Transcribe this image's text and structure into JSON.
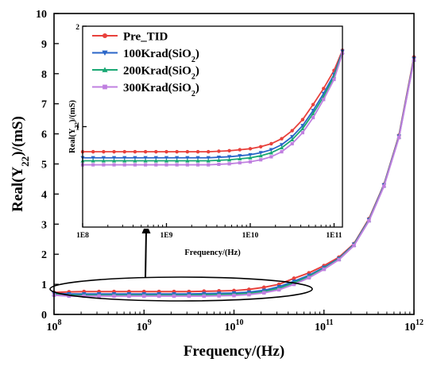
{
  "chart_data": [
    {
      "type": "line",
      "panel": "main",
      "xlabel": "Frequency/(Hz)",
      "ylabel_html": "Real(Y<sub>22</sub>)/(mS)",
      "ylabel_parts": [
        "Real(Y",
        "22",
        ")/(mS)"
      ],
      "x_scale": "log",
      "xlim": [
        100000000,
        1000000000000
      ],
      "ylim": [
        0,
        10
      ],
      "x_ticks": [
        {
          "base": "10",
          "exp": "8",
          "value": 100000000
        },
        {
          "base": "10",
          "exp": "9",
          "value": 1000000000
        },
        {
          "base": "10",
          "exp": "10",
          "value": 10000000000
        },
        {
          "base": "10",
          "exp": "11",
          "value": 100000000000
        },
        {
          "base": "10",
          "exp": "12",
          "value": 1000000000000
        }
      ],
      "y_ticks": [
        "0",
        "1",
        "2",
        "3",
        "4",
        "5",
        "6",
        "7",
        "8",
        "9",
        "10"
      ],
      "grid": false,
      "x": [
        100000000,
        146780000,
        215440000,
        316230000,
        464160000,
        681290000,
        1000000000,
        1467800000,
        2154400000,
        3162300000,
        4641600000,
        6812900000,
        10000000000,
        14678000000,
        21544000000,
        31623000000,
        46416000000,
        68129000000,
        100000000000,
        146780000000,
        215440000000,
        316230000000,
        464160000000,
        681290000000,
        1000000000000
      ],
      "series": [
        {
          "name": "Pre_TID",
          "color": "#e8413c",
          "marker": "circle",
          "values": [
            0.73,
            0.75,
            0.76,
            0.76,
            0.76,
            0.76,
            0.76,
            0.76,
            0.76,
            0.76,
            0.77,
            0.78,
            0.79,
            0.83,
            0.9,
            1.0,
            1.2,
            1.38,
            1.62,
            1.9,
            2.35,
            3.18,
            4.32,
            5.95,
            8.55
          ]
        },
        {
          "name": "100Krad(SiO2)",
          "color": "#2a66c8",
          "marker": "triangle-down",
          "values": [
            0.7,
            0.68,
            0.68,
            0.68,
            0.68,
            0.68,
            0.68,
            0.68,
            0.68,
            0.68,
            0.69,
            0.7,
            0.71,
            0.74,
            0.8,
            0.92,
            1.1,
            1.3,
            1.56,
            1.86,
            2.33,
            3.15,
            4.3,
            5.92,
            8.5
          ]
        },
        {
          "name": "200Krad(SiO2)",
          "color": "#1aa874",
          "marker": "triangle-up",
          "values": [
            0.67,
            0.64,
            0.64,
            0.64,
            0.64,
            0.64,
            0.64,
            0.64,
            0.64,
            0.64,
            0.65,
            0.66,
            0.67,
            0.7,
            0.76,
            0.87,
            1.05,
            1.26,
            1.53,
            1.84,
            2.31,
            3.13,
            4.28,
            5.9,
            8.47
          ]
        },
        {
          "name": "300Krad(SiO2)",
          "color": "#c080e0",
          "marker": "square",
          "values": [
            0.64,
            0.61,
            0.61,
            0.61,
            0.61,
            0.61,
            0.61,
            0.61,
            0.61,
            0.61,
            0.61,
            0.62,
            0.63,
            0.66,
            0.72,
            0.82,
            1.0,
            1.22,
            1.5,
            1.82,
            2.29,
            3.11,
            4.26,
            5.88,
            8.45
          ]
        }
      ]
    },
    {
      "type": "line",
      "panel": "inset",
      "xlabel": "Frequency/(Hz)",
      "ylabel_parts": [
        "Real(Y",
        "22",
        ")/(mS)"
      ],
      "x_scale": "log",
      "xlim": [
        100000000,
        125890000000
      ],
      "ylim": [
        0,
        2
      ],
      "x_ticks": [
        {
          "label": "1E8",
          "value": 100000000
        },
        {
          "label": "1E9",
          "value": 1000000000
        },
        {
          "label": "1E10",
          "value": 10000000000
        },
        {
          "label": "1E11",
          "value": 100000000000
        }
      ],
      "y_ticks": [
        "1",
        "2"
      ],
      "legend": "top-left",
      "x": [
        100000000,
        133350000,
        177830000,
        237140000,
        316230000,
        421700000,
        562340000,
        749890000,
        1000000000,
        1333500000,
        1778300000,
        2371400000,
        3162300000,
        4217000000,
        5623400000,
        7498900000,
        10000000000,
        13335000000,
        17783000000,
        23714000000,
        31623000000,
        42170000000,
        56234000000,
        74989000000,
        100000000000,
        125890000000
      ],
      "series": [
        {
          "name_parts": [
            "Pre_TID",
            "",
            ""
          ],
          "color": "#e8413c",
          "marker": "circle",
          "values": [
            0.75,
            0.75,
            0.75,
            0.75,
            0.75,
            0.75,
            0.75,
            0.75,
            0.75,
            0.75,
            0.75,
            0.75,
            0.75,
            0.755,
            0.76,
            0.77,
            0.78,
            0.8,
            0.83,
            0.88,
            0.96,
            1.07,
            1.22,
            1.38,
            1.56,
            1.76
          ]
        },
        {
          "name_parts": [
            "100Krad(SiO",
            "2",
            ")"
          ],
          "color": "#2a66c8",
          "marker": "triangle-down",
          "values": [
            0.69,
            0.69,
            0.69,
            0.69,
            0.69,
            0.69,
            0.69,
            0.69,
            0.69,
            0.69,
            0.69,
            0.69,
            0.69,
            0.695,
            0.7,
            0.71,
            0.72,
            0.74,
            0.77,
            0.82,
            0.9,
            1.01,
            1.16,
            1.33,
            1.52,
            1.75
          ]
        },
        {
          "name_parts": [
            "200Krad(SiO",
            "2",
            ")"
          ],
          "color": "#1aa874",
          "marker": "triangle-up",
          "values": [
            0.66,
            0.66,
            0.66,
            0.66,
            0.66,
            0.66,
            0.66,
            0.66,
            0.66,
            0.66,
            0.66,
            0.66,
            0.66,
            0.665,
            0.67,
            0.68,
            0.69,
            0.71,
            0.74,
            0.79,
            0.87,
            0.98,
            1.13,
            1.3,
            1.5,
            1.74
          ]
        },
        {
          "name_parts": [
            "300Krad(SiO",
            "2",
            ")"
          ],
          "color": "#c080e0",
          "marker": "square",
          "values": [
            0.62,
            0.62,
            0.62,
            0.62,
            0.62,
            0.62,
            0.62,
            0.62,
            0.62,
            0.62,
            0.62,
            0.62,
            0.62,
            0.625,
            0.63,
            0.64,
            0.65,
            0.67,
            0.7,
            0.75,
            0.83,
            0.94,
            1.09,
            1.27,
            1.47,
            1.73
          ]
        }
      ]
    }
  ]
}
